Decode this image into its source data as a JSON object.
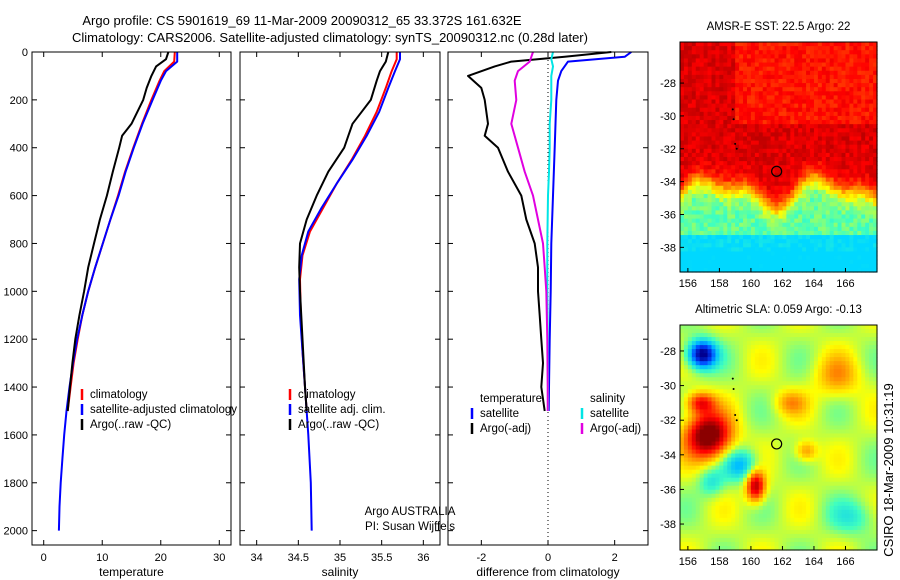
{
  "figure": {
    "title_line1": "Argo profile: CS 5901619_69 11-Mar-2009 20090312_65 33.372S 161.632E",
    "title_line2": "Climatology: CARS2006. Satellite-adjusted climatology: synTS_20090312.nc (0.28d later)",
    "side_credit": "CSIRO 18-Mar-2009 10:31:19"
  },
  "chart_data": [
    {
      "id": "temperature",
      "type": "line",
      "xlabel": "temperature",
      "ylabel": "",
      "xlim": [
        -2,
        32
      ],
      "ylim": [
        0,
        2060
      ],
      "y_reversed": true,
      "xticks": [
        "0",
        "10",
        "20",
        "30"
      ],
      "yticks": [
        "0",
        "200",
        "400",
        "600",
        "800",
        "1000",
        "1200",
        "1400",
        "1600",
        "1800",
        "2000"
      ],
      "legend": {
        "location": "lower-right",
        "entries": [
          {
            "label": "climatology",
            "color": "#ff0000"
          },
          {
            "label": "satellite-adjusted climatology",
            "color": "#0000ff"
          },
          {
            "label": "Argo(..raw -QC)",
            "color": "#000000"
          }
        ]
      },
      "series": [
        {
          "name": "climatology",
          "color": "#ff0000",
          "depth": [
            0,
            40,
            80,
            120,
            200,
            300,
            400,
            500,
            600,
            700,
            800,
            900,
            1000,
            1100,
            1200,
            1300,
            1400,
            1500
          ],
          "values": [
            22.4,
            22.3,
            20.6,
            19.8,
            18.4,
            16.8,
            15.3,
            13.9,
            12.7,
            11.4,
            10.1,
            8.8,
            7.6,
            6.6,
            5.8,
            5.1,
            4.6,
            4.1
          ]
        },
        {
          "name": "satellite-adjusted climatology",
          "color": "#0000ff",
          "depth": [
            0,
            40,
            80,
            120,
            200,
            300,
            400,
            500,
            600,
            700,
            800,
            900,
            1000,
            1100,
            1200,
            1300,
            1400,
            1500,
            1600,
            1700,
            1800,
            1900,
            2000
          ],
          "values": [
            22.8,
            22.8,
            20.9,
            20.0,
            18.6,
            16.9,
            15.4,
            14.0,
            12.8,
            11.4,
            10.1,
            8.8,
            7.6,
            6.6,
            5.7,
            5.0,
            4.4,
            3.9,
            3.5,
            3.2,
            2.9,
            2.7,
            2.6
          ]
        },
        {
          "name": "Argo(..raw -QC)",
          "color": "#000000",
          "depth": [
            0,
            30,
            60,
            100,
            150,
            200,
            300,
            350,
            400,
            500,
            600,
            700,
            800,
            900,
            1000,
            1100,
            1200,
            1300,
            1400,
            1500
          ],
          "values": [
            21.3,
            20.9,
            19.2,
            18.4,
            17.6,
            17.0,
            15.0,
            13.4,
            12.9,
            11.8,
            10.8,
            9.6,
            8.6,
            7.6,
            6.9,
            6.1,
            5.4,
            4.9,
            4.5,
            4.1
          ]
        }
      ]
    },
    {
      "id": "salinity",
      "type": "line",
      "xlabel": "salinity",
      "ylabel": "",
      "xlim": [
        33.8,
        36.2
      ],
      "ylim": [
        0,
        2060
      ],
      "y_reversed": true,
      "xticks": [
        "34",
        "34.5",
        "35",
        "35.5",
        "36"
      ],
      "legend": {
        "location": "lower-right",
        "entries": [
          {
            "label": "climatology",
            "color": "#ff0000"
          },
          {
            "label": "satellite adj. clim.",
            "color": "#0000ff"
          },
          {
            "label": "Argo(..raw -QC)",
            "color": "#000000"
          }
        ]
      },
      "annotation": [
        "Argo AUSTRALIA",
        "PI: Susan Wijffels"
      ],
      "series": [
        {
          "name": "climatology",
          "color": "#ff0000",
          "depth": [
            0,
            30,
            80,
            150,
            250,
            350,
            450,
            550,
            650,
            750,
            850,
            950,
            1100,
            1250,
            1400,
            1500
          ],
          "values": [
            35.68,
            35.68,
            35.62,
            35.55,
            35.44,
            35.3,
            35.14,
            34.96,
            34.8,
            34.64,
            34.55,
            34.52,
            34.53,
            34.55,
            34.58,
            34.6
          ]
        },
        {
          "name": "satellite adj. clim.",
          "color": "#0000ff",
          "depth": [
            0,
            30,
            80,
            150,
            250,
            350,
            450,
            550,
            650,
            750,
            850,
            950,
            1100,
            1250,
            1400,
            1600,
            1800,
            2000
          ],
          "values": [
            35.72,
            35.72,
            35.66,
            35.58,
            35.47,
            35.32,
            35.15,
            34.96,
            34.78,
            34.62,
            34.54,
            34.51,
            34.52,
            34.55,
            34.58,
            34.62,
            34.65,
            34.66
          ]
        },
        {
          "name": "Argo(..raw -QC)",
          "color": "#000000",
          "depth": [
            0,
            40,
            80,
            120,
            200,
            250,
            300,
            350,
            400,
            500,
            600,
            700,
            800,
            900,
            1000,
            1200,
            1400,
            1500
          ],
          "values": [
            35.58,
            35.55,
            35.48,
            35.44,
            35.37,
            35.26,
            35.15,
            35.1,
            35.05,
            34.86,
            34.72,
            34.6,
            34.52,
            34.51,
            34.52,
            34.55,
            34.58,
            34.6
          ]
        }
      ]
    },
    {
      "id": "difference",
      "type": "line",
      "xlabel": "difference from climatology",
      "ylabel": "",
      "xlim": [
        -3.0,
        3.0
      ],
      "ylim": [
        0,
        2060
      ],
      "y_reversed": true,
      "xticks": [
        "-2",
        "0",
        "2"
      ],
      "zero_line": "dotted",
      "legend_groups": [
        {
          "heading": "temperature",
          "entries": [
            {
              "label": "satellite",
              "color": "#0000ff"
            },
            {
              "label": "Argo(-adj)",
              "color": "#000000"
            }
          ]
        },
        {
          "heading": "salinity",
          "entries": [
            {
              "label": "satellite",
              "color": "#00e5e5"
            },
            {
              "label": "Argo(-adj)",
              "color": "#e000e0"
            }
          ]
        }
      ],
      "series": [
        {
          "name": "temperature satellite",
          "color": "#0000ff",
          "depth": [
            0,
            20,
            40,
            80,
            120,
            200,
            400,
            600,
            800,
            1000,
            1200,
            1400,
            1500
          ],
          "values": [
            2.5,
            2.3,
            0.6,
            0.4,
            0.3,
            0.25,
            0.2,
            0.15,
            0.1,
            0.08,
            0.05,
            0.03,
            0.02
          ]
        },
        {
          "name": "temperature Argo(-adj)",
          "color": "#000000",
          "depth": [
            0,
            20,
            40,
            60,
            100,
            150,
            200,
            300,
            350,
            400,
            500,
            600,
            700,
            800,
            900,
            1000,
            1100,
            1200,
            1300,
            1400,
            1450,
            1500
          ],
          "values": [
            1.9,
            0.5,
            -1.1,
            -1.6,
            -2.4,
            -2.0,
            -1.9,
            -1.8,
            -1.9,
            -1.5,
            -1.2,
            -0.8,
            -0.65,
            -0.4,
            -0.3,
            -0.3,
            -0.25,
            -0.2,
            -0.15,
            -0.2,
            -0.15,
            -0.1
          ]
        },
        {
          "name": "salinity satellite",
          "color": "#00e5e5",
          "depth": [
            0,
            30,
            60,
            100,
            200,
            300,
            400,
            500,
            600,
            800,
            1000,
            1200,
            1400,
            1500
          ],
          "values": [
            0.15,
            0.1,
            0.15,
            0.1,
            0.1,
            0.05,
            0.05,
            0.03,
            0.0,
            -0.02,
            -0.02,
            -0.01,
            0.0,
            0.0
          ]
        },
        {
          "name": "salinity Argo(-adj)",
          "color": "#e000e0",
          "depth": [
            0,
            40,
            80,
            120,
            200,
            300,
            400,
            500,
            600,
            700,
            800,
            900,
            1000,
            1200,
            1400,
            1500
          ],
          "values": [
            -0.45,
            -0.55,
            -0.9,
            -1.0,
            -0.95,
            -1.1,
            -0.9,
            -0.7,
            -0.45,
            -0.3,
            -0.15,
            -0.1,
            -0.05,
            -0.02,
            -0.01,
            -0.01
          ]
        }
      ]
    },
    {
      "id": "sst-map",
      "type": "heatmap",
      "title": "AMSR-E SST: 22.5 Argo: 22",
      "xlim": [
        155.5,
        168
      ],
      "ylim": [
        -39.5,
        -25.5
      ],
      "xticks": [
        "156",
        "158",
        "160",
        "162",
        "164",
        "166"
      ],
      "yticks": [
        "-28",
        "-30",
        "-32",
        "-34",
        "-36",
        "-38"
      ],
      "marker": {
        "lon": 161.632,
        "lat": -33.372
      },
      "colormap": [
        "#00d8ff",
        "#40ffbf",
        "#ffff00",
        "#ff8000",
        "#ff0000",
        "#8b0000"
      ],
      "value_range": [
        18,
        25
      ]
    },
    {
      "id": "sla-map",
      "type": "heatmap",
      "title": "Altimetric SLA: 0.059 Argo: -0.13",
      "xlim": [
        155.5,
        168
      ],
      "ylim": [
        -39.5,
        -26.5
      ],
      "xticks": [
        "156",
        "158",
        "160",
        "162",
        "164",
        "166"
      ],
      "yticks": [
        "-28",
        "-30",
        "-32",
        "-34",
        "-36",
        "-38"
      ],
      "marker": {
        "lon": 161.632,
        "lat": -33.372
      },
      "colormap": [
        "#000090",
        "#0040ff",
        "#00c0ff",
        "#40ffbf",
        "#ffff00",
        "#ff8000",
        "#ff0000",
        "#8b0000"
      ],
      "value_range": [
        -0.4,
        0.4
      ]
    }
  ]
}
